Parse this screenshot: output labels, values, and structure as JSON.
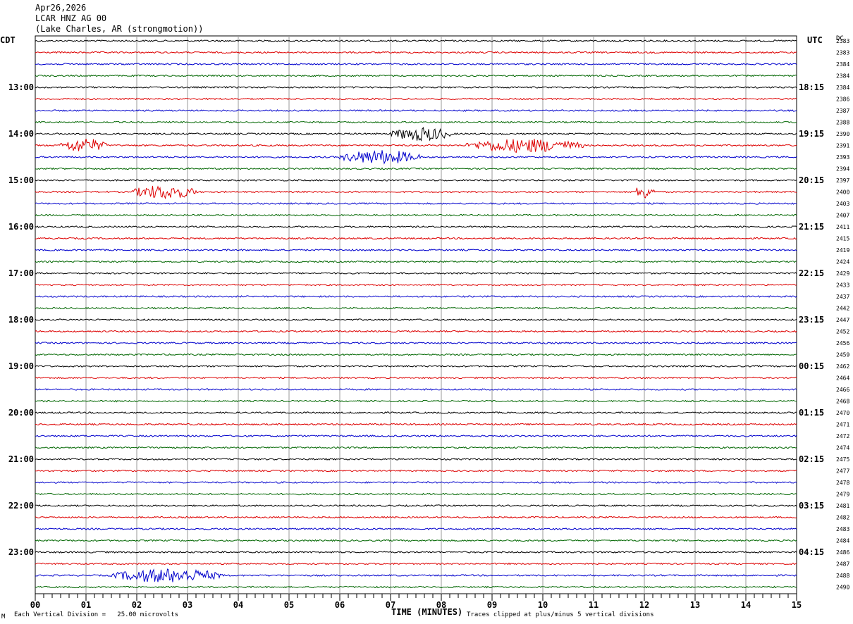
{
  "header": {
    "date": "Apr26,2026",
    "station": "LCAR HNZ AG 00",
    "location": "(Lake Charles, AR (strongmotion))"
  },
  "left_axis_label": "CDT",
  "right_axis_label": "UTC",
  "dc_label": "DC",
  "footer": {
    "scale_note": "Each Vertical Division =   25.00 microvolts",
    "clip_note": "Traces clipped at plus/minus 5 vertical divisions",
    "corner_mark": "M"
  },
  "colors": {
    "trace_cycle": [
      "#000000",
      "#dd0000",
      "#0000cc",
      "#006600"
    ],
    "grid": "#999999"
  },
  "chart_data": {
    "type": "line",
    "title": "",
    "xlabel": "TIME (MINUTES)",
    "xlim": [
      0,
      15
    ],
    "x_ticks": [
      "00",
      "01",
      "02",
      "03",
      "04",
      "05",
      "06",
      "07",
      "08",
      "09",
      "10",
      "11",
      "12",
      "13",
      "14",
      "15"
    ],
    "rows_per_hour": 4,
    "row_minutes": 15,
    "cdt_hour_labels": [
      {
        "row": 4,
        "label": "13:00"
      },
      {
        "row": 8,
        "label": "14:00"
      },
      {
        "row": 12,
        "label": "15:00"
      },
      {
        "row": 16,
        "label": "16:00"
      },
      {
        "row": 20,
        "label": "17:00"
      },
      {
        "row": 24,
        "label": "18:00"
      },
      {
        "row": 28,
        "label": "19:00"
      },
      {
        "row": 32,
        "label": "20:00"
      },
      {
        "row": 36,
        "label": "21:00"
      },
      {
        "row": 40,
        "label": "22:00"
      },
      {
        "row": 44,
        "label": "23:00"
      }
    ],
    "utc_hour_labels": [
      {
        "row": 4,
        "label": "18:15"
      },
      {
        "row": 8,
        "label": "19:15"
      },
      {
        "row": 12,
        "label": "20:15"
      },
      {
        "row": 16,
        "label": "21:15"
      },
      {
        "row": 20,
        "label": "22:15"
      },
      {
        "row": 24,
        "label": "23:15"
      },
      {
        "row": 28,
        "label": "00:15"
      },
      {
        "row": 32,
        "label": "01:15"
      },
      {
        "row": 36,
        "label": "02:15"
      },
      {
        "row": 40,
        "label": "03:15"
      },
      {
        "row": 44,
        "label": "04:15"
      }
    ],
    "dc_offsets": [
      "2383",
      "2383",
      "2384",
      "2384",
      "2384",
      "2386",
      "2387",
      "2388",
      "2390",
      "2391",
      "2393",
      "2394",
      "2397",
      "2400",
      "2403",
      "2407",
      "2411",
      "2415",
      "2419",
      "2424",
      "2429",
      "2433",
      "2437",
      "2442",
      "2447",
      "2452",
      "2456",
      "2459",
      "2462",
      "2464",
      "2466",
      "2468",
      "2470",
      "2471",
      "2472",
      "2474",
      "2475",
      "2477",
      "2478",
      "2479",
      "2481",
      "2482",
      "2483",
      "2484",
      "2486",
      "2487",
      "2488",
      "2490"
    ],
    "series": [
      {
        "values": [
          0,
          0.05,
          0.15,
          0.3,
          0.22,
          0.12,
          0.0,
          0.02,
          0.6,
          0.15,
          0.05,
          0,
          0.05,
          0,
          0,
          0,
          0
        ]
      },
      {
        "values": [
          0,
          0.9,
          0.35,
          0.1,
          0.02,
          0,
          0,
          0.05,
          0.2,
          0.4,
          0.45,
          0.2,
          0.05,
          0,
          0,
          0,
          0
        ]
      },
      {
        "values": [
          0,
          0,
          0,
          0,
          0,
          0,
          0.3,
          0.9,
          0.6,
          0.2,
          0,
          0,
          0,
          0,
          0,
          0,
          0
        ]
      },
      {
        "values": [
          0,
          2.8,
          3.6,
          1.5,
          0.4,
          0,
          0,
          0.1,
          0.2,
          0.2,
          0.3,
          0.5,
          4.5,
          0.6,
          0.1,
          0,
          0
        ]
      },
      {
        "values": [
          0,
          0.6,
          1.8,
          2.0,
          1.6,
          0.9,
          0.5,
          0.2,
          0,
          0,
          0,
          0,
          0,
          0,
          0,
          0,
          0
        ]
      }
    ],
    "events": [
      {
        "row": 8,
        "minutes": [
          7.0,
          8.2
        ]
      },
      {
        "row": 9,
        "minutes": [
          0.5,
          1.4
        ]
      },
      {
        "row": 9,
        "minutes": [
          8.5,
          10.8
        ]
      },
      {
        "row": 10,
        "minutes": [
          6.0,
          7.6
        ]
      },
      {
        "row": 13,
        "minutes": [
          1.9,
          3.2
        ]
      },
      {
        "row": 13,
        "minutes": [
          11.8,
          12.2
        ]
      },
      {
        "row": 46,
        "minutes": [
          1.5,
          3.7
        ]
      }
    ]
  }
}
